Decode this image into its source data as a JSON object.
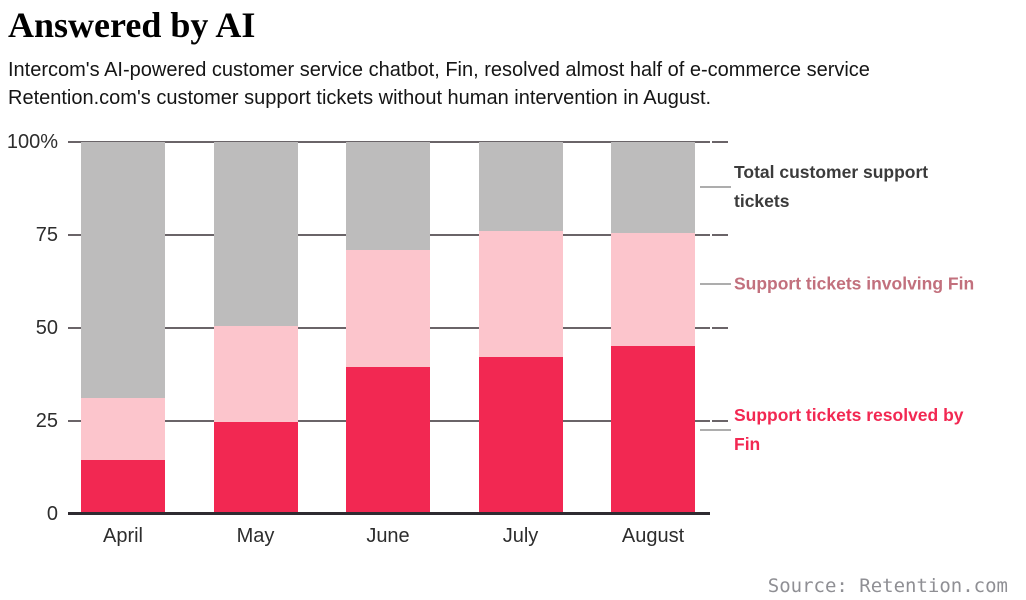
{
  "header": {
    "title": "Answered by AI",
    "subtitle": "Intercom's AI-powered customer service chatbot, Fin, resolved almost half of e-commerce service Retention.com's customer support tickets without human intervention in August.",
    "subtitle_lines": [
      "Intercom's AI-powered customer service chatbot, Fin, resolved almost half of e-commerce service",
      "Retention.com's customer support tickets without human intervention in August."
    ]
  },
  "source": "Source: Retention.com",
  "colors": {
    "resolved": "#f22852",
    "involving": "#fcc5cc",
    "total": "#bdbcbc",
    "total_text": "#3b3b3b",
    "involving_text": "#c2707d",
    "resolved_text": "#f22852",
    "gridline": "#6a6468",
    "axis": "#2f2b31",
    "leader": "#adadad",
    "tick_label": "#2d2d2d",
    "source_text": "#8f8f94"
  },
  "chart_data": {
    "type": "bar",
    "stacked": true,
    "title": "Answered by AI",
    "unit": "percent of customer support tickets",
    "categories": [
      "April",
      "May",
      "June",
      "July",
      "August"
    ],
    "series": [
      {
        "name": "Support tickets resolved by Fin",
        "key": "resolved",
        "stack_top_percent": [
          14.5,
          24.5,
          39.5,
          42,
          45
        ]
      },
      {
        "name": "Support tickets involving Fin",
        "key": "involving",
        "stack_top_percent": [
          31,
          50.5,
          71,
          76,
          75.5
        ]
      },
      {
        "name": "Total customer support tickets",
        "key": "total",
        "stack_top_percent": [
          100,
          100,
          100,
          100,
          100
        ]
      }
    ],
    "y_axis": {
      "min": 0,
      "max": 100,
      "ticks": [
        {
          "label": "100%",
          "value": 100
        },
        {
          "label": "75",
          "value": 75
        },
        {
          "label": "50",
          "value": 50
        },
        {
          "label": "25",
          "value": 25
        },
        {
          "label": "0",
          "value": 0
        }
      ]
    },
    "grid": "horizontal",
    "legend_position": "right",
    "legend": [
      {
        "label": "Total customer support tickets",
        "lines": [
          "Total customer support",
          "tickets"
        ],
        "key": "total_text",
        "anchor_percent": 87.8
      },
      {
        "label": "Support tickets involving Fin",
        "lines": [
          "Support tickets involving Fin"
        ],
        "key": "involving_text",
        "anchor_percent": 61.8
      },
      {
        "label": "Support tickets resolved by Fin",
        "lines": [
          "Support tickets resolved by",
          "Fin"
        ],
        "key": "resolved_text",
        "anchor_percent": 22.6
      }
    ]
  }
}
